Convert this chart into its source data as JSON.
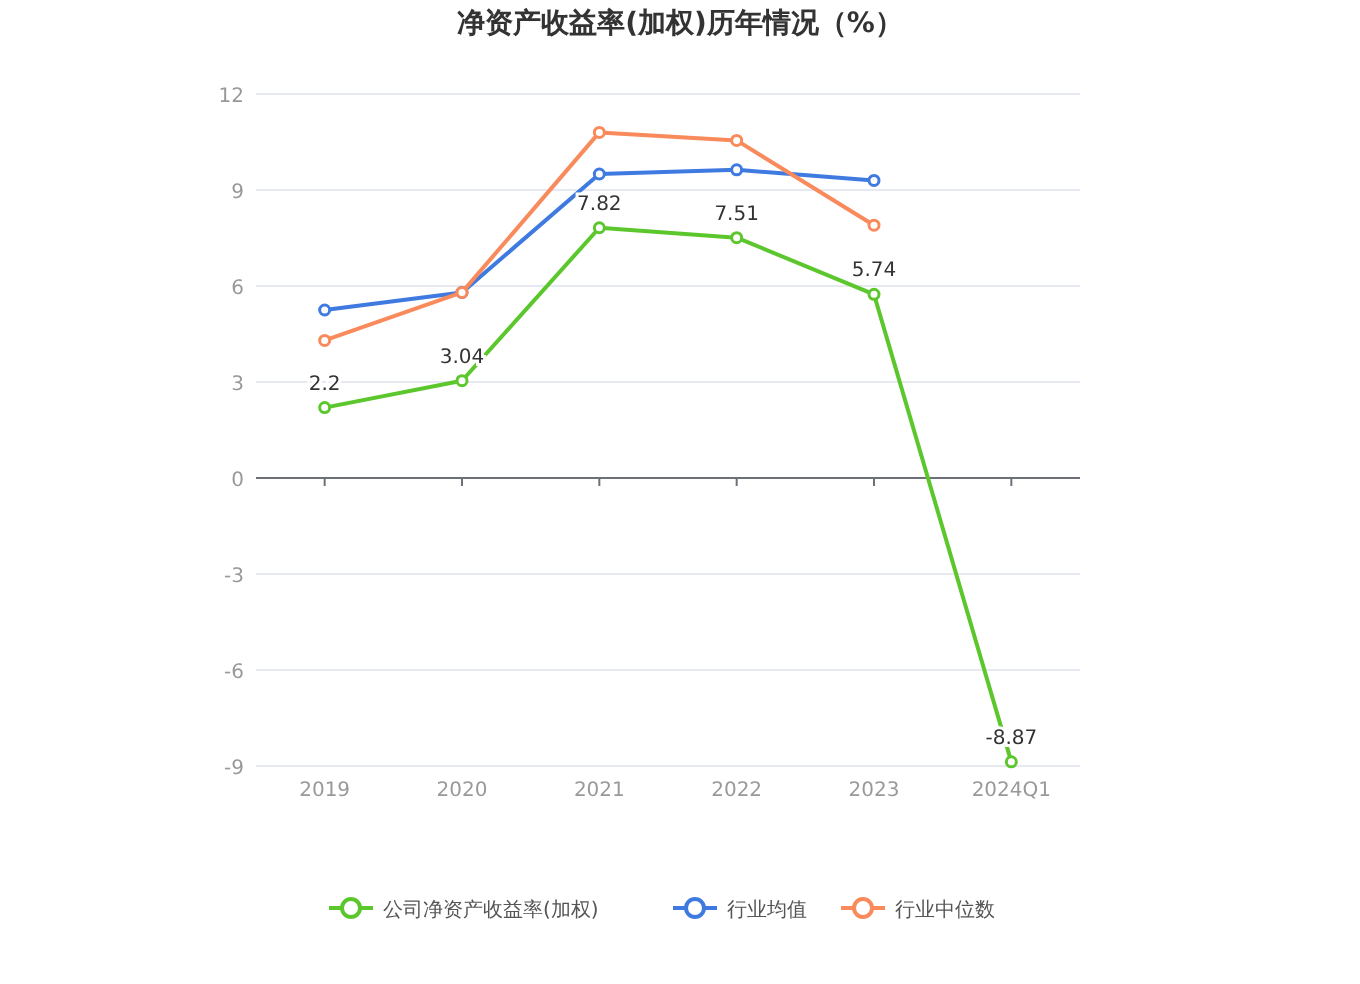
{
  "chart_data": {
    "type": "line",
    "title": "净资产收益率(加权)历年情况（%）",
    "categories": [
      "2019",
      "2020",
      "2021",
      "2022",
      "2023",
      "2024Q1"
    ],
    "series": [
      {
        "name": "公司净资产收益率(加权)",
        "color": "#5cc72d",
        "values": [
          2.2,
          3.04,
          7.82,
          7.51,
          5.74,
          -8.87
        ],
        "value_labels": [
          "2.2",
          "3.04",
          "7.82",
          "7.51",
          "5.74",
          "-8.87"
        ]
      },
      {
        "name": "行业均值",
        "color": "#3f7ae0",
        "values": [
          5.25,
          5.8,
          9.5,
          9.63,
          9.3,
          null
        ]
      },
      {
        "name": "行业中位数",
        "color": "#f98a5b",
        "values": [
          4.3,
          5.8,
          10.8,
          10.55,
          7.9,
          null
        ]
      }
    ],
    "ylim": [
      -9,
      12
    ],
    "yticks": [
      -9,
      -6,
      -3,
      0,
      3,
      6,
      9,
      12
    ],
    "grid": "y",
    "legend": "bottom",
    "marker": "circle",
    "line_style": "solid"
  }
}
